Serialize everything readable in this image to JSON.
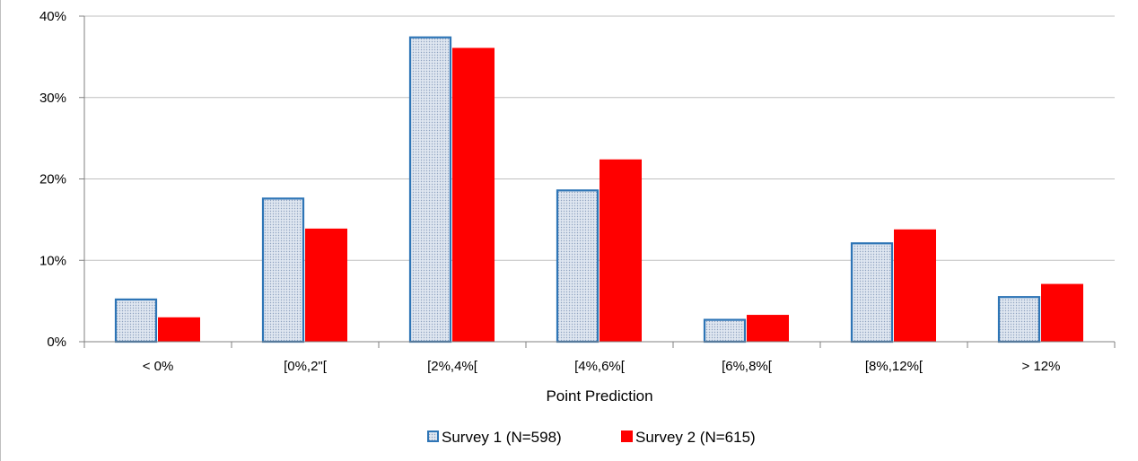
{
  "chart_data": {
    "type": "bar",
    "title": "",
    "xlabel": "Point Prediction",
    "ylabel": "",
    "categories": [
      "< 0%",
      "[0%,2\"[",
      "[2%,4%[",
      "[4%,6%[",
      "[6%,8%[",
      "[8%,12%[",
      "> 12%"
    ],
    "yticks": [
      "0%",
      "10%",
      "20%",
      "30%",
      "40%"
    ],
    "ylim": [
      0,
      40
    ],
    "grid": true,
    "legend_position": "bottom",
    "series": [
      {
        "name": "Survey 1 (N=598)",
        "values": [
          5.3,
          17.7,
          37.5,
          18.7,
          2.8,
          12.2,
          5.6
        ],
        "fill": "#dfe6f0",
        "pattern_dot": "#8fa3c0",
        "border": "#2e75b6"
      },
      {
        "name": "Survey 2 (N=615)",
        "values": [
          3.0,
          13.9,
          36.1,
          22.4,
          3.3,
          13.8,
          7.1
        ],
        "fill": "#ff0000",
        "border": "#ff0000"
      }
    ],
    "gridline_color": "#bfbfbf",
    "axis_color": "#808080"
  }
}
